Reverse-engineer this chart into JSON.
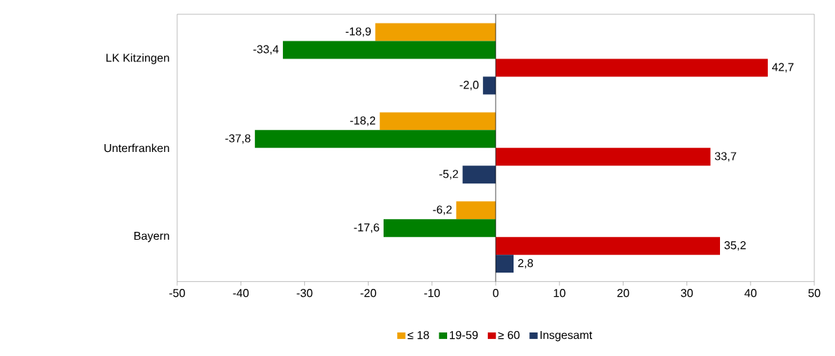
{
  "chart_data": {
    "type": "bar",
    "orientation": "horizontal",
    "categories": [
      "LK Kitzingen",
      "Unterfranken",
      "Bayern"
    ],
    "series": [
      {
        "name": "≤ 18",
        "color": "#f0a000",
        "values": [
          -18.9,
          -18.2,
          -6.2
        ],
        "value_labels": [
          "-18,9",
          "-18,2",
          "-6,2"
        ]
      },
      {
        "name": "19-59",
        "color": "#008000",
        "values": [
          -33.4,
          -37.8,
          -17.6
        ],
        "value_labels": [
          "-33,4",
          "-37,8",
          "-17,6"
        ]
      },
      {
        "name": "≥ 60",
        "color": "#d00000",
        "values": [
          42.7,
          33.7,
          35.2
        ],
        "value_labels": [
          "42,7",
          "33,7",
          "35,2"
        ]
      },
      {
        "name": "Insgesamt",
        "color": "#1f3864",
        "values": [
          -2.0,
          -5.2,
          2.8
        ],
        "value_labels": [
          "-2,0",
          "-5,2",
          "2,8"
        ]
      }
    ],
    "xlim": [
      -50,
      50
    ],
    "xticks": [
      -50,
      -40,
      -30,
      -20,
      -10,
      0,
      10,
      20,
      30,
      40,
      50
    ],
    "grid": false,
    "ref_lines": [
      {
        "axis": "x",
        "value": 0,
        "color": "#000000"
      }
    ],
    "legend": "bottom"
  }
}
